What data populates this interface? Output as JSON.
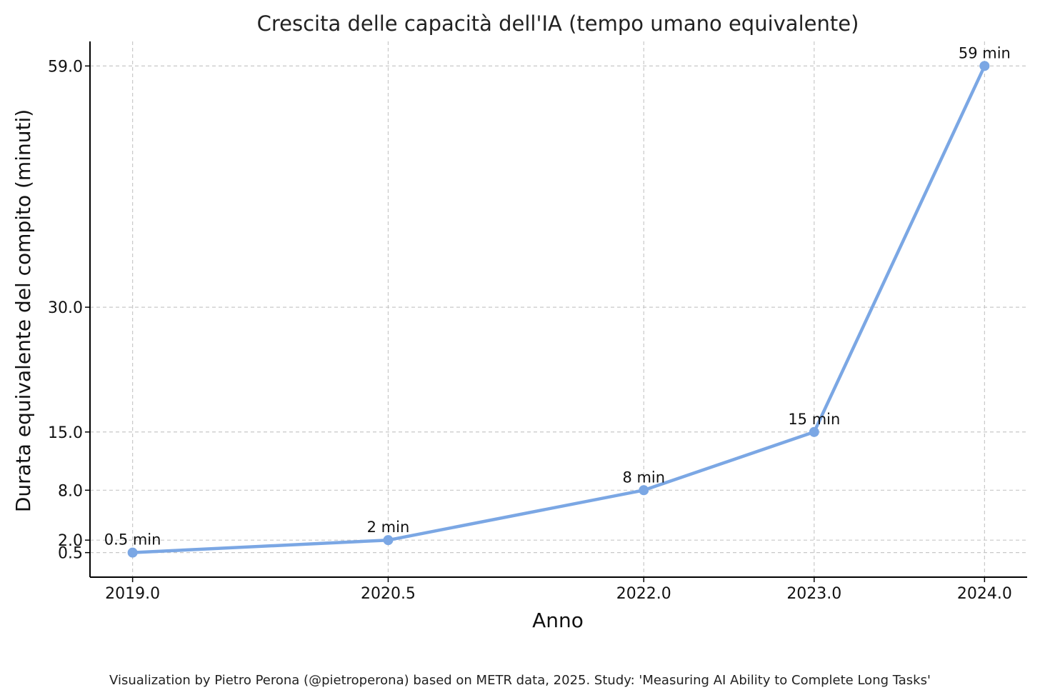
{
  "chart_data": {
    "type": "line",
    "title": "Crescita delle capacità dell'IA (tempo umano equivalente)",
    "xlabel": "Anno",
    "ylabel": "Durata equivalente del compito (minuti)",
    "x": [
      2019.0,
      2020.5,
      2022.0,
      2023.0,
      2024.0
    ],
    "y": [
      0.5,
      2,
      8,
      15,
      59
    ],
    "point_labels": [
      "0.5 min",
      "2 min",
      "8 min",
      "15 min",
      "59 min"
    ],
    "x_ticks": [
      "2019.0",
      "2020.5",
      "2022.0",
      "2023.0",
      "2024.0"
    ],
    "y_ticks": [
      {
        "value": 0.5,
        "label": "0.5"
      },
      {
        "value": 2.0,
        "label": "2.0"
      },
      {
        "value": 8.0,
        "label": "8.0"
      },
      {
        "value": 15.0,
        "label": "15.0"
      },
      {
        "value": 30.0,
        "label": "30.0"
      },
      {
        "value": 59.0,
        "label": "59.0"
      }
    ],
    "xlim": [
      2018.75,
      2024.25
    ],
    "ylim": [
      -2.45,
      61.95
    ],
    "grid": true,
    "line_color": "#7ba7e4"
  },
  "caption": "Visualization by Pietro Perona (@pietroperona) based on METR data, 2025. Study: 'Measuring AI Ability to Complete Long Tasks'"
}
